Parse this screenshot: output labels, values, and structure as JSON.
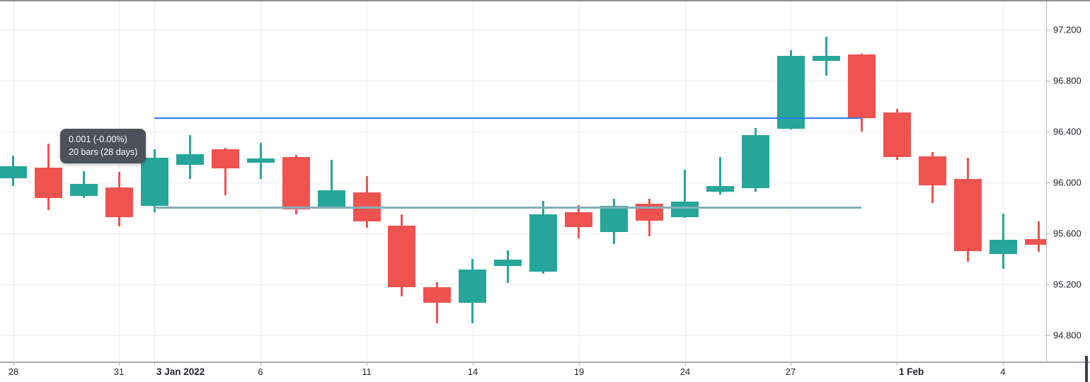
{
  "tooltip": {
    "line1": "0.001 (-0.00%)",
    "line2": "20 bars (28 days)",
    "background": "#4c515b",
    "text_color": "#ffffff"
  },
  "chart_data": {
    "type": "candlestick",
    "up_color": "#26a69a",
    "down_color": "#ef5350",
    "grid": true,
    "legend_position": "none",
    "y_axis": {
      "side": "right",
      "ylim": [
        94.62,
        97.43
      ],
      "ticks": [
        {
          "label": "97.200",
          "value": 97.2
        },
        {
          "label": "96.800",
          "value": 96.8
        },
        {
          "label": "96.400",
          "value": 96.4
        },
        {
          "label": "96.000",
          "value": 96.0
        },
        {
          "label": "95.600",
          "value": 95.6
        },
        {
          "label": "95.200",
          "value": 95.2
        },
        {
          "label": "94.800",
          "value": 94.8
        }
      ]
    },
    "x_axis": {
      "ticks": [
        {
          "label": "28",
          "bar": 0,
          "bold": false
        },
        {
          "label": "31",
          "bar": 3,
          "bold": false
        },
        {
          "label": "3 Jan 2022",
          "bar": 4,
          "bold": true
        },
        {
          "label": "6",
          "bar": 7,
          "bold": false
        },
        {
          "label": "11",
          "bar": 10,
          "bold": false
        },
        {
          "label": "14",
          "bar": 13,
          "bold": false
        },
        {
          "label": "19",
          "bar": 16,
          "bold": false
        },
        {
          "label": "24",
          "bar": 19,
          "bold": false
        },
        {
          "label": "27",
          "bar": 22,
          "bold": false
        },
        {
          "label": "1 Feb",
          "bar": 25,
          "bold": true
        },
        {
          "label": "4",
          "bar": 28,
          "bold": false
        }
      ]
    },
    "candles": [
      {
        "date": "2021-12-28",
        "open": 96.035,
        "high": 96.21,
        "low": 95.97,
        "close": 96.13
      },
      {
        "date": "2021-12-29",
        "open": 96.115,
        "high": 96.305,
        "low": 95.785,
        "close": 95.88
      },
      {
        "date": "2021-12-30",
        "open": 95.895,
        "high": 96.09,
        "low": 95.88,
        "close": 95.99
      },
      {
        "date": "2021-12-31",
        "open": 95.96,
        "high": 96.085,
        "low": 95.655,
        "close": 95.73
      },
      {
        "date": "2022-01-03",
        "open": 95.815,
        "high": 96.26,
        "low": 95.765,
        "close": 96.195
      },
      {
        "date": "2022-01-04",
        "open": 96.14,
        "high": 96.37,
        "low": 96.03,
        "close": 96.22
      },
      {
        "date": "2022-01-05",
        "open": 96.26,
        "high": 96.27,
        "low": 95.9,
        "close": 96.11
      },
      {
        "date": "2022-01-06",
        "open": 96.155,
        "high": 96.31,
        "low": 96.03,
        "close": 96.19
      },
      {
        "date": "2022-01-07",
        "open": 96.2,
        "high": 96.215,
        "low": 95.75,
        "close": 95.79
      },
      {
        "date": "2022-01-10",
        "open": 95.81,
        "high": 96.18,
        "low": 95.805,
        "close": 95.94
      },
      {
        "date": "2022-01-11",
        "open": 95.92,
        "high": 96.05,
        "low": 95.645,
        "close": 95.695
      },
      {
        "date": "2022-01-12",
        "open": 95.66,
        "high": 95.75,
        "low": 95.105,
        "close": 95.18
      },
      {
        "date": "2022-01-13",
        "open": 95.18,
        "high": 95.215,
        "low": 94.895,
        "close": 95.055
      },
      {
        "date": "2022-01-14",
        "open": 95.055,
        "high": 95.4,
        "low": 94.895,
        "close": 95.315
      },
      {
        "date": "2022-01-17",
        "open": 95.345,
        "high": 95.465,
        "low": 95.21,
        "close": 95.395
      },
      {
        "date": "2022-01-18",
        "open": 95.3,
        "high": 95.855,
        "low": 95.285,
        "close": 95.75
      },
      {
        "date": "2022-01-19",
        "open": 95.765,
        "high": 95.82,
        "low": 95.56,
        "close": 95.65
      },
      {
        "date": "2022-01-20",
        "open": 95.61,
        "high": 95.875,
        "low": 95.515,
        "close": 95.815
      },
      {
        "date": "2022-01-21",
        "open": 95.835,
        "high": 95.87,
        "low": 95.58,
        "close": 95.7
      },
      {
        "date": "2022-01-24",
        "open": 95.73,
        "high": 96.1,
        "low": 95.725,
        "close": 95.85
      },
      {
        "date": "2022-01-25",
        "open": 95.925,
        "high": 96.2,
        "low": 95.905,
        "close": 95.97
      },
      {
        "date": "2022-01-26",
        "open": 95.955,
        "high": 96.43,
        "low": 95.93,
        "close": 96.375
      },
      {
        "date": "2022-01-27",
        "open": 96.42,
        "high": 97.04,
        "low": 96.415,
        "close": 96.995
      },
      {
        "date": "2022-01-28",
        "open": 96.955,
        "high": 97.145,
        "low": 96.84,
        "close": 96.995
      },
      {
        "date": "2022-01-31",
        "open": 97.005,
        "high": 97.01,
        "low": 96.4,
        "close": 96.505
      },
      {
        "date": "2022-02-01",
        "open": 96.55,
        "high": 96.58,
        "low": 96.18,
        "close": 96.2
      },
      {
        "date": "2022-02-02",
        "open": 96.205,
        "high": 96.24,
        "low": 95.84,
        "close": 95.975
      },
      {
        "date": "2022-02-03",
        "open": 96.03,
        "high": 96.195,
        "low": 95.375,
        "close": 95.46
      },
      {
        "date": "2022-02-04",
        "open": 95.44,
        "high": 95.755,
        "low": 95.32,
        "close": 95.55
      },
      {
        "date": "2022-02-07",
        "open": 95.555,
        "high": 95.695,
        "low": 95.455,
        "close": 95.51
      }
    ],
    "drawings": [
      {
        "name": "horizontal-line",
        "price": 96.505,
        "from_bar": 4,
        "to_bar": 24,
        "color": "#2e7be9",
        "thickness": 2
      },
      {
        "name": "date-price-range-line",
        "price": 95.805,
        "from_bar": 4,
        "to_bar": 24,
        "color": "#84aeb9",
        "thickness": 3
      }
    ]
  }
}
